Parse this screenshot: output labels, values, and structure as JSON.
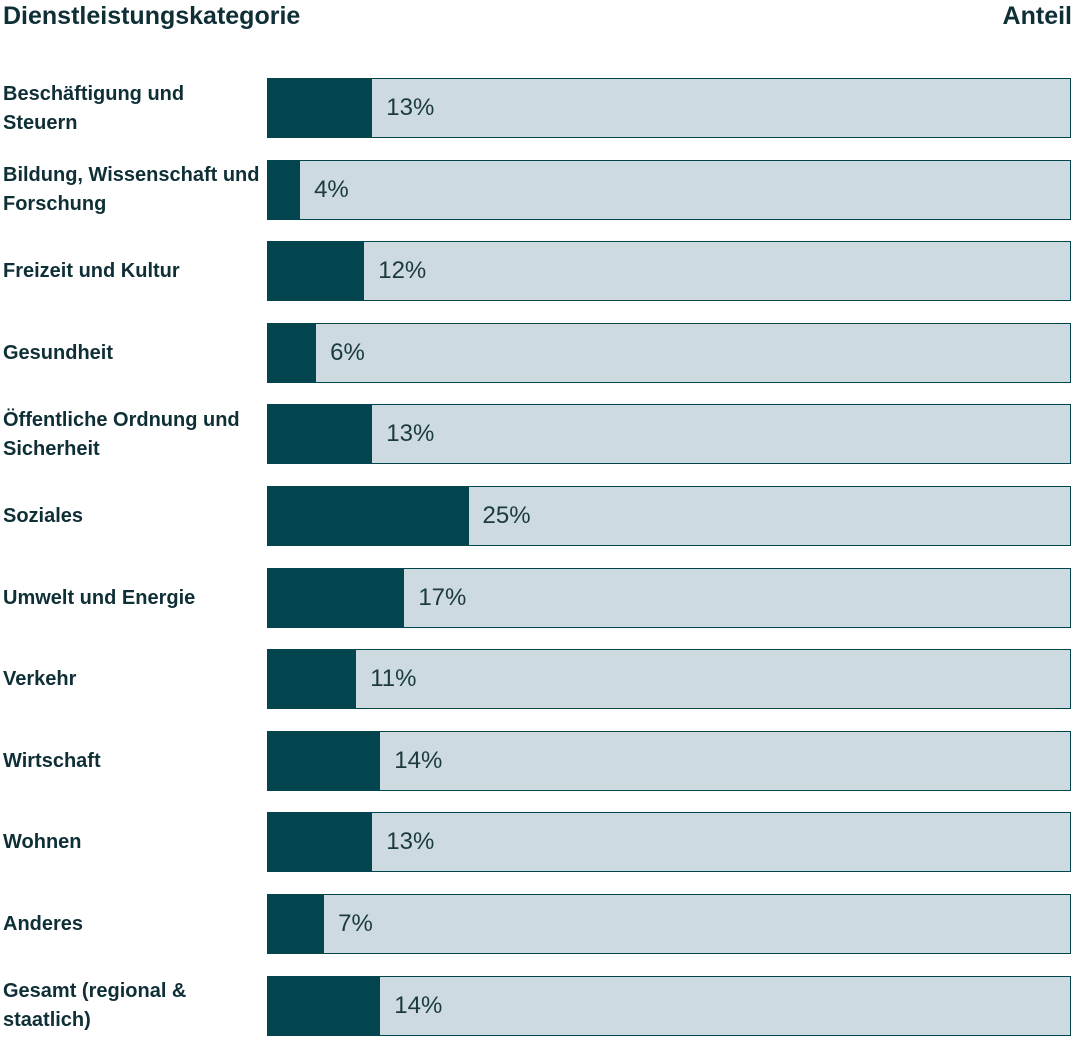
{
  "chart_data": {
    "type": "bar",
    "orientation": "horizontal",
    "ylabel": "Dienstleistungskategorie",
    "xlabel": "Anteil",
    "categories": [
      "Beschäftigung und Steuern",
      "Bildung, Wissenschaft und Forschung",
      "Freizeit und Kultur",
      "Gesundheit",
      "Öffentliche Ordnung und Sicherheit",
      "Soziales",
      "Umwelt und Energie",
      "Verkehr",
      "Wirtschaft",
      "Wohnen",
      "Anderes",
      "Gesamt (regional & staatlich)"
    ],
    "values": [
      13,
      4,
      12,
      6,
      13,
      25,
      17,
      11,
      14,
      13,
      7,
      14
    ],
    "value_labels": [
      "13%",
      "4%",
      "12%",
      "6%",
      "13%",
      "25%",
      "17%",
      "11%",
      "14%",
      "13%",
      "7%",
      "14%"
    ],
    "xlim": [
      0,
      100
    ],
    "color": "#02454f",
    "track_color": "#cddadf"
  }
}
